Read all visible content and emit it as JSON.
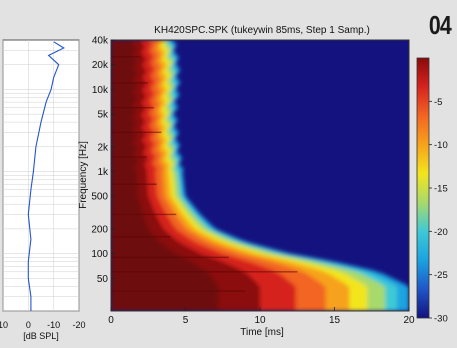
{
  "figure_number": "04",
  "chart_data": [
    {
      "type": "line",
      "title": "",
      "xlabel": "[dB SPL]",
      "ylabel": "",
      "x_ticks": [
        "10",
        "0",
        "-10",
        "-20"
      ],
      "xlim": [
        10,
        -20
      ],
      "y_scale": "log",
      "ylim_hz": [
        20,
        40000
      ],
      "series": [
        {
          "values": [
            {
              "f": 20,
              "db": -1
            },
            {
              "f": 30,
              "db": -1
            },
            {
              "f": 50,
              "db": 0
            },
            {
              "f": 80,
              "db": 0
            },
            {
              "f": 150,
              "db": -1
            },
            {
              "f": 300,
              "db": 0
            },
            {
              "f": 600,
              "db": -1
            },
            {
              "f": 1000,
              "db": -2
            },
            {
              "f": 2000,
              "db": -3
            },
            {
              "f": 4000,
              "db": -5
            },
            {
              "f": 7000,
              "db": -7
            },
            {
              "f": 10000,
              "db": -9
            },
            {
              "f": 14000,
              "db": -10
            },
            {
              "f": 20000,
              "db": -12
            },
            {
              "f": 26000,
              "db": -8
            },
            {
              "f": 32000,
              "db": -14
            },
            {
              "f": 38000,
              "db": -10
            }
          ]
        }
      ],
      "grid": true,
      "color": "#2255cc"
    },
    {
      "type": "heatmap",
      "title": "KH420SPC.SPK (tukeywin 85ms, Step 1 Samp.)",
      "xlabel": "Time [ms]",
      "ylabel": "Frequency [Hz]",
      "x_ticks": [
        "0",
        "5",
        "10",
        "15",
        "20"
      ],
      "y_ticks": [
        "40k",
        "20k",
        "10k",
        "5k",
        "2k",
        "1k",
        "500",
        "200",
        "100",
        "50"
      ],
      "xlim": [
        0,
        20
      ],
      "ylim_hz": [
        20,
        40000
      ],
      "y_scale": "log",
      "decay_time_ms": [
        {
          "f": 20,
          "t": 20
        },
        {
          "f": 40,
          "t": 20
        },
        {
          "f": 60,
          "t": 18
        },
        {
          "f": 80,
          "t": 15
        },
        {
          "f": 100,
          "t": 12
        },
        {
          "f": 140,
          "t": 9
        },
        {
          "f": 200,
          "t": 7
        },
        {
          "f": 300,
          "t": 6
        },
        {
          "f": 500,
          "t": 5
        },
        {
          "f": 1000,
          "t": 4.8
        },
        {
          "f": 2000,
          "t": 4.5
        },
        {
          "f": 5000,
          "t": 4.3
        },
        {
          "f": 10000,
          "t": 4.5
        },
        {
          "f": 20000,
          "t": 4.5
        },
        {
          "f": 40000,
          "t": 4.2
        }
      ],
      "colorbar": {
        "ticks": [
          "-5",
          "-10",
          "-15",
          "-20",
          "-25",
          "-30"
        ],
        "range_db": [
          0,
          -30
        ],
        "stops": [
          "#8b0a0a",
          "#d6231f",
          "#f26522",
          "#f7a21b",
          "#f2e51c",
          "#a8d96c",
          "#3ec9d6",
          "#1aa3e0",
          "#1f55c8",
          "#14127f"
        ]
      }
    }
  ]
}
